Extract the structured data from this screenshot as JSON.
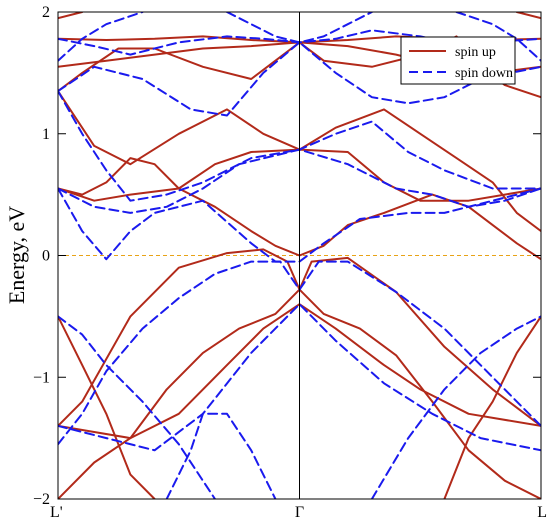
{
  "chart_data": {
    "type": "line",
    "title": "",
    "xlabel": "",
    "ylabel": "Energy, eV",
    "ylim": [
      -2,
      2
    ],
    "x_ticks": [
      {
        "x": 0,
        "label": "L'"
      },
      {
        "x": 1,
        "label": "Γ"
      },
      {
        "x": 2,
        "label": "L"
      }
    ],
    "y_ticks": [
      {
        "y": -2,
        "label": "−2"
      },
      {
        "y": -1,
        "label": "−1"
      },
      {
        "y": 0,
        "label": "0"
      },
      {
        "y": 1,
        "label": "1"
      },
      {
        "y": 2,
        "label": "2"
      }
    ],
    "fermi_level": 0,
    "legend_position": "top-right",
    "colors": {
      "spin_up": "#b22a1a",
      "spin_down": "#1a1aee",
      "fermi": "#e8a317"
    },
    "series": [
      {
        "name": "spin up",
        "style": "solid",
        "bands": [
          [
            [
              0,
              -2.0
            ],
            [
              0.15,
              -1.7
            ],
            [
              0.3,
              -1.5
            ],
            [
              0.45,
              -1.1
            ],
            [
              0.6,
              -0.8
            ],
            [
              0.75,
              -0.6
            ],
            [
              0.9,
              -0.48
            ],
            [
              1.0,
              -0.28
            ],
            [
              1.1,
              -0.48
            ],
            [
              1.25,
              -0.6
            ],
            [
              1.4,
              -0.82
            ],
            [
              1.55,
              -1.2
            ],
            [
              1.7,
              -1.6
            ],
            [
              1.85,
              -1.85
            ],
            [
              2.0,
              -2.0
            ]
          ],
          [
            [
              0,
              -1.4
            ],
            [
              0.1,
              -1.2
            ],
            [
              0.3,
              -0.5
            ],
            [
              0.5,
              -0.1
            ],
            [
              0.7,
              0.02
            ],
            [
              0.85,
              0.05
            ],
            [
              0.95,
              -0.05
            ],
            [
              1.0,
              -0.28
            ],
            [
              1.05,
              -0.05
            ],
            [
              1.2,
              -0.02
            ],
            [
              1.4,
              -0.3
            ],
            [
              1.6,
              -0.75
            ],
            [
              1.8,
              -1.1
            ],
            [
              2.0,
              -1.4
            ]
          ],
          [
            [
              0,
              -1.4
            ],
            [
              0.15,
              -1.45
            ],
            [
              0.3,
              -1.5
            ],
            [
              0.5,
              -1.3
            ],
            [
              0.7,
              -0.9
            ],
            [
              0.85,
              -0.6
            ],
            [
              1.0,
              -0.4
            ],
            [
              1.15,
              -0.6
            ],
            [
              1.35,
              -0.9
            ],
            [
              1.5,
              -1.1
            ],
            [
              1.7,
              -1.3
            ],
            [
              2.0,
              -1.4
            ]
          ],
          [
            [
              0,
              -0.5
            ],
            [
              0.1,
              -0.9
            ],
            [
              0.2,
              -1.3
            ],
            [
              0.3,
              -1.8
            ],
            [
              0.4,
              -2.0
            ]
          ],
          [
            [
              1.6,
              -2.0
            ],
            [
              1.7,
              -1.5
            ],
            [
              1.8,
              -1.2
            ],
            [
              1.9,
              -0.8
            ],
            [
              2.0,
              -0.5
            ]
          ],
          [
            [
              0,
              0.55
            ],
            [
              0.1,
              0.5
            ],
            [
              0.2,
              0.6
            ],
            [
              0.3,
              0.8
            ],
            [
              0.4,
              0.75
            ],
            [
              0.5,
              0.55
            ],
            [
              0.65,
              0.4
            ],
            [
              0.8,
              0.2
            ],
            [
              0.9,
              0.08
            ],
            [
              1.0,
              0.0
            ],
            [
              1.1,
              0.08
            ],
            [
              1.2,
              0.25
            ],
            [
              1.35,
              0.35
            ],
            [
              1.55,
              0.5
            ],
            [
              1.7,
              0.4
            ],
            [
              1.8,
              0.25
            ],
            [
              1.9,
              0.1
            ],
            [
              2.0,
              -0.03
            ]
          ],
          [
            [
              0,
              0.55
            ],
            [
              0.15,
              0.45
            ],
            [
              0.3,
              0.5
            ],
            [
              0.5,
              0.55
            ],
            [
              0.65,
              0.75
            ],
            [
              0.8,
              0.85
            ],
            [
              1.0,
              0.87
            ],
            [
              1.2,
              0.85
            ],
            [
              1.35,
              0.6
            ],
            [
              1.5,
              0.45
            ],
            [
              1.7,
              0.45
            ],
            [
              1.85,
              0.5
            ],
            [
              2.0,
              0.55
            ]
          ],
          [
            [
              0,
              1.35
            ],
            [
              0.05,
              1.2
            ],
            [
              0.15,
              0.9
            ],
            [
              0.3,
              0.75
            ],
            [
              0.5,
              1.0
            ],
            [
              0.7,
              1.2
            ],
            [
              0.85,
              1.0
            ],
            [
              1.0,
              0.87
            ],
            [
              1.15,
              1.05
            ],
            [
              1.35,
              1.2
            ],
            [
              1.5,
              1.0
            ],
            [
              1.65,
              0.8
            ],
            [
              1.8,
              0.6
            ],
            [
              1.9,
              0.35
            ],
            [
              2.0,
              0.2
            ]
          ],
          [
            [
              0,
              1.35
            ],
            [
              0.1,
              1.5
            ],
            [
              0.25,
              1.7
            ],
            [
              0.4,
              1.7
            ],
            [
              0.6,
              1.55
            ],
            [
              0.8,
              1.45
            ],
            [
              0.9,
              1.6
            ],
            [
              1.0,
              1.75
            ],
            [
              1.1,
              1.6
            ],
            [
              1.3,
              1.55
            ],
            [
              1.5,
              1.65
            ],
            [
              1.65,
              1.8
            ],
            [
              1.75,
              1.55
            ],
            [
              1.85,
              1.4
            ],
            [
              2.0,
              1.3
            ]
          ],
          [
            [
              0,
              1.78
            ],
            [
              0.2,
              1.77
            ],
            [
              0.4,
              1.78
            ],
            [
              0.6,
              1.8
            ],
            [
              0.8,
              1.77
            ],
            [
              1.0,
              1.75
            ],
            [
              1.2,
              1.77
            ],
            [
              1.4,
              1.8
            ],
            [
              1.6,
              1.78
            ],
            [
              1.8,
              1.77
            ],
            [
              2.0,
              1.78
            ]
          ],
          [
            [
              0,
              1.55
            ],
            [
              0.2,
              1.6
            ],
            [
              0.4,
              1.65
            ],
            [
              0.6,
              1.7
            ],
            [
              0.8,
              1.72
            ],
            [
              1.0,
              1.75
            ],
            [
              1.2,
              1.72
            ],
            [
              1.4,
              1.65
            ],
            [
              1.6,
              1.55
            ],
            [
              1.8,
              1.5
            ],
            [
              2.0,
              1.55
            ]
          ],
          [
            [
              0,
              1.95
            ],
            [
              0.1,
              2.0
            ]
          ],
          [
            [
              1.9,
              2.0
            ],
            [
              2.0,
              1.95
            ]
          ]
        ]
      },
      {
        "name": "spin down",
        "style": "dashed",
        "bands": [
          [
            [
              0,
              -1.55
            ],
            [
              0.1,
              -1.3
            ],
            [
              0.2,
              -0.95
            ],
            [
              0.35,
              -0.6
            ],
            [
              0.5,
              -0.35
            ],
            [
              0.65,
              -0.15
            ],
            [
              0.8,
              -0.05
            ],
            [
              0.92,
              -0.05
            ],
            [
              1.0,
              -0.28
            ],
            [
              1.08,
              -0.05
            ],
            [
              1.2,
              -0.05
            ],
            [
              1.4,
              -0.3
            ],
            [
              1.6,
              -0.6
            ],
            [
              1.8,
              -1.0
            ],
            [
              2.0,
              -1.4
            ]
          ],
          [
            [
              0,
              -0.5
            ],
            [
              0.1,
              -0.65
            ],
            [
              0.2,
              -0.9
            ],
            [
              0.35,
              -1.2
            ],
            [
              0.5,
              -1.55
            ],
            [
              0.65,
              -2.0
            ]
          ],
          [
            [
              0,
              -1.4
            ],
            [
              0.2,
              -1.5
            ],
            [
              0.4,
              -1.6
            ],
            [
              0.6,
              -1.3
            ],
            [
              0.8,
              -0.8
            ],
            [
              1.0,
              -0.4
            ],
            [
              1.15,
              -0.7
            ],
            [
              1.35,
              -1.05
            ],
            [
              1.55,
              -1.3
            ],
            [
              1.75,
              -1.5
            ],
            [
              2.0,
              -1.6
            ]
          ],
          [
            [
              0.45,
              -2.0
            ],
            [
              0.55,
              -1.6
            ],
            [
              0.6,
              -1.3
            ],
            [
              0.7,
              -1.3
            ],
            [
              0.8,
              -1.6
            ],
            [
              0.9,
              -2.0
            ]
          ],
          [
            [
              1.3,
              -2.0
            ],
            [
              1.45,
              -1.5
            ],
            [
              1.6,
              -1.1
            ],
            [
              1.75,
              -0.8
            ],
            [
              1.9,
              -0.6
            ],
            [
              2.0,
              -0.5
            ]
          ],
          [
            [
              0,
              0.55
            ],
            [
              0.1,
              0.2
            ],
            [
              0.2,
              -0.03
            ],
            [
              0.3,
              0.2
            ],
            [
              0.4,
              0.35
            ],
            [
              0.6,
              0.45
            ],
            [
              0.8,
              0.1
            ],
            [
              0.9,
              -0.05
            ],
            [
              1.0,
              -0.05
            ],
            [
              1.1,
              0.1
            ],
            [
              1.25,
              0.3
            ],
            [
              1.45,
              0.35
            ],
            [
              1.6,
              0.35
            ],
            [
              1.8,
              0.45
            ],
            [
              2.0,
              0.55
            ]
          ],
          [
            [
              0,
              0.55
            ],
            [
              0.15,
              0.4
            ],
            [
              0.3,
              0.35
            ],
            [
              0.45,
              0.4
            ],
            [
              0.6,
              0.55
            ],
            [
              0.75,
              0.75
            ],
            [
              1.0,
              0.87
            ],
            [
              1.2,
              0.75
            ],
            [
              1.4,
              0.55
            ],
            [
              1.55,
              0.5
            ],
            [
              1.7,
              0.4
            ],
            [
              1.85,
              0.45
            ],
            [
              2.0,
              0.55
            ]
          ],
          [
            [
              0,
              1.35
            ],
            [
              0.1,
              1.0
            ],
            [
              0.2,
              0.7
            ],
            [
              0.3,
              0.45
            ],
            [
              0.45,
              0.5
            ],
            [
              0.6,
              0.6
            ],
            [
              0.8,
              0.8
            ],
            [
              1.0,
              0.87
            ],
            [
              1.15,
              1.0
            ],
            [
              1.3,
              1.1
            ],
            [
              1.45,
              0.85
            ],
            [
              1.6,
              0.7
            ],
            [
              1.8,
              0.55
            ],
            [
              2.0,
              0.55
            ]
          ],
          [
            [
              0,
              1.35
            ],
            [
              0.15,
              1.55
            ],
            [
              0.35,
              1.45
            ],
            [
              0.55,
              1.2
            ],
            [
              0.7,
              1.15
            ],
            [
              0.85,
              1.5
            ],
            [
              1.0,
              1.75
            ],
            [
              1.15,
              1.5
            ],
            [
              1.3,
              1.3
            ],
            [
              1.45,
              1.25
            ],
            [
              1.6,
              1.3
            ],
            [
              1.75,
              1.45
            ],
            [
              2.0,
              1.55
            ]
          ],
          [
            [
              0,
              1.78
            ],
            [
              0.15,
              1.72
            ],
            [
              0.3,
              1.65
            ],
            [
              0.5,
              1.75
            ],
            [
              0.7,
              1.8
            ],
            [
              0.85,
              1.78
            ],
            [
              1.0,
              1.75
            ],
            [
              1.15,
              1.78
            ],
            [
              1.3,
              1.85
            ],
            [
              1.5,
              1.8
            ],
            [
              1.7,
              1.72
            ],
            [
              1.85,
              1.76
            ],
            [
              2.0,
              1.78
            ]
          ],
          [
            [
              0,
              1.6
            ],
            [
              0.1,
              1.78
            ],
            [
              0.2,
              1.9
            ],
            [
              0.35,
              2.0
            ]
          ],
          [
            [
              1.65,
              2.0
            ],
            [
              1.8,
              1.9
            ],
            [
              1.9,
              1.78
            ],
            [
              2.0,
              1.6
            ]
          ],
          [
            [
              0.7,
              2.0
            ],
            [
              0.8,
              1.9
            ],
            [
              0.9,
              1.8
            ],
            [
              1.0,
              1.75
            ],
            [
              1.1,
              1.8
            ],
            [
              1.2,
              1.9
            ],
            [
              1.3,
              2.0
            ]
          ]
        ]
      }
    ]
  }
}
